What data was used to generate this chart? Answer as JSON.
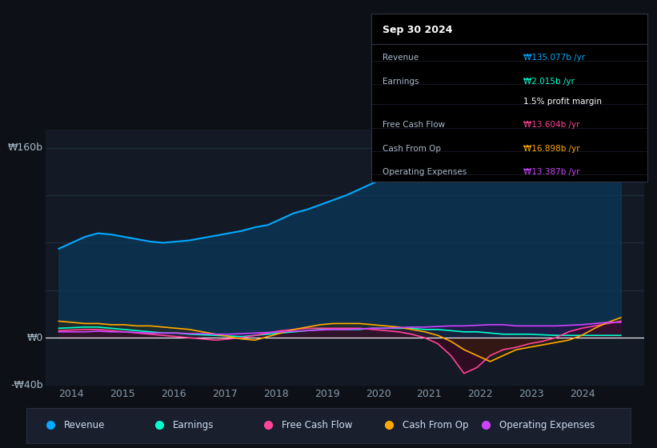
{
  "background_color": "#0d1117",
  "chart_bg_color": "#131a25",
  "ylabel_top": "₩160b",
  "ylabel_mid": "₩0",
  "ylabel_bot": "-₩40b",
  "ylim": [
    -40,
    175
  ],
  "xlim": [
    2013.5,
    2025.2
  ],
  "xticks": [
    2014,
    2015,
    2016,
    2017,
    2018,
    2019,
    2020,
    2021,
    2022,
    2023,
    2024
  ],
  "grid_color": "#1e2d3d",
  "zero_line_color": "#ffffff",
  "series": {
    "Revenue": {
      "color": "#00aaff",
      "fill_color": "#0a3a5c"
    },
    "Earnings": {
      "color": "#00ffcc",
      "fill_color": "#004433"
    },
    "Free Cash Flow": {
      "color": "#ff4499",
      "fill_color": "#4a0020"
    },
    "Cash From Op": {
      "color": "#ffaa00",
      "fill_color": "#3a2800"
    },
    "Operating Expenses": {
      "color": "#cc44ff",
      "fill_color": "#330044"
    }
  },
  "tooltip": {
    "date": "Sep 30 2024",
    "Revenue": "₩135.077b /yr",
    "Revenue_color": "#00aaff",
    "Earnings": "₩2.015b /yr",
    "Earnings_color": "#00ffcc",
    "profit_margin": "1.5% profit margin",
    "Free_Cash_Flow": "₩13.604b /yr",
    "Free_Cash_Flow_color": "#ff4499",
    "Cash_From_Op": "₩16.898b /yr",
    "Cash_From_Op_color": "#ffaa00",
    "Operating_Expenses": "₩13.387b /yr",
    "Operating_Expenses_color": "#cc44ff"
  },
  "legend": [
    {
      "label": "Revenue",
      "color": "#00aaff"
    },
    {
      "label": "Earnings",
      "color": "#00ffcc"
    },
    {
      "label": "Free Cash Flow",
      "color": "#ff4499"
    },
    {
      "label": "Cash From Op",
      "color": "#ffaa00"
    },
    {
      "label": "Operating Expenses",
      "color": "#cc44ff"
    }
  ],
  "tooltip_separator_color": "#333344",
  "tooltip_row_color": "#222233",
  "tooltip_label_color": "#aabbcc",
  "legend_bg_color": "#1a1f2e",
  "legend_text_color": "#ccddee"
}
